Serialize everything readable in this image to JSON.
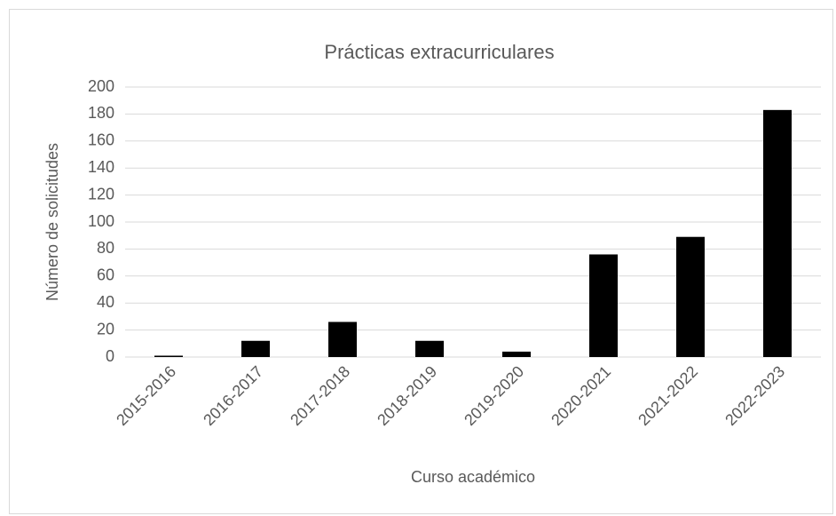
{
  "chart_data": {
    "type": "bar",
    "title": "Prácticas extracurriculares",
    "xlabel": "Curso académico",
    "ylabel": "Número de solicitudes",
    "categories": [
      "2015-2016",
      "2016-2017",
      "2017-2018",
      "2018-2019",
      "2019-2020",
      "2020-2021",
      "2021-2022",
      "2022-2023"
    ],
    "values": [
      1,
      12,
      26,
      12,
      4,
      76,
      89,
      183
    ],
    "color": "#000000",
    "ylim": [
      0,
      200
    ],
    "yticks": [
      0,
      20,
      40,
      60,
      80,
      100,
      120,
      140,
      160,
      180,
      200
    ],
    "grid": true
  }
}
